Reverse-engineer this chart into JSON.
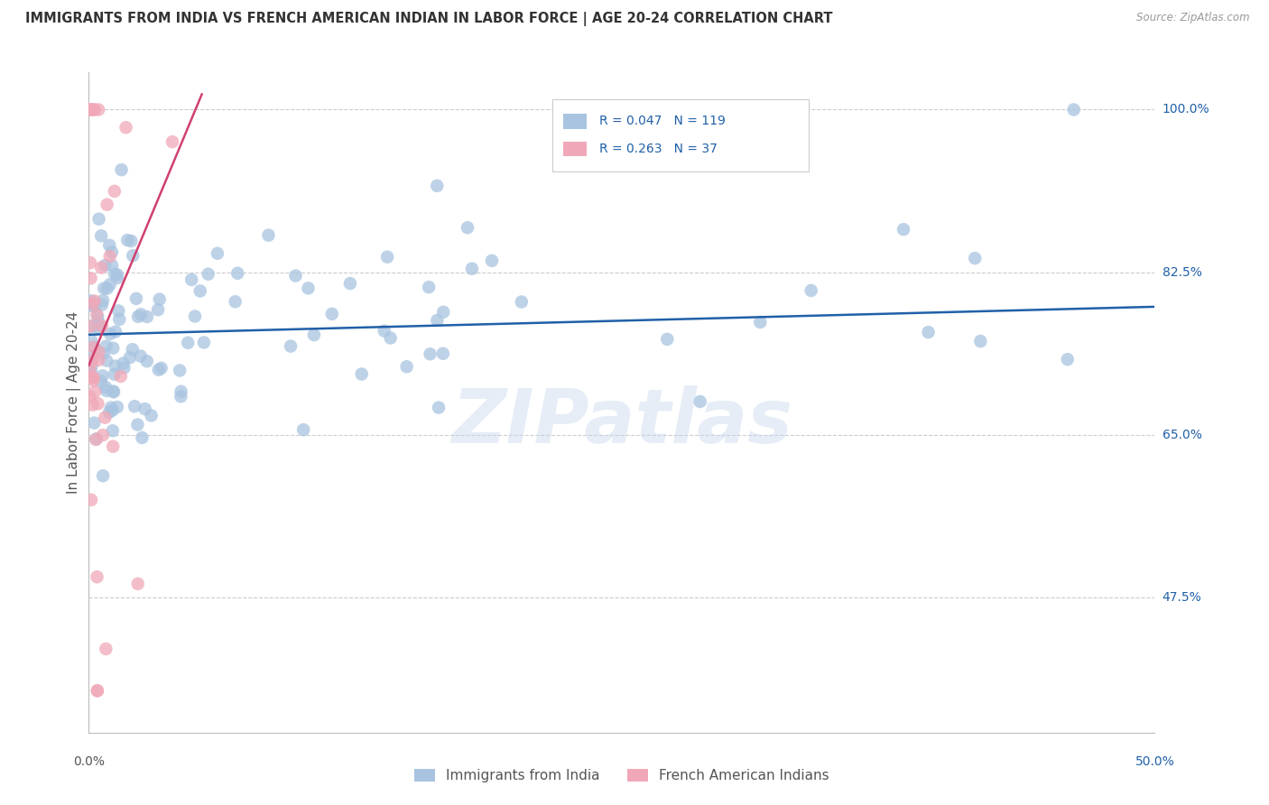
{
  "title": "IMMIGRANTS FROM INDIA VS FRENCH AMERICAN INDIAN IN LABOR FORCE | AGE 20-24 CORRELATION CHART",
  "source": "Source: ZipAtlas.com",
  "ylabel": "In Labor Force | Age 20-24",
  "y_tick_labels": [
    "100.0%",
    "82.5%",
    "65.0%",
    "47.5%"
  ],
  "y_tick_values": [
    1.0,
    0.825,
    0.65,
    0.475
  ],
  "xlim": [
    0.0,
    0.5
  ],
  "ylim": [
    0.33,
    1.04
  ],
  "blue_R": 0.047,
  "blue_N": 119,
  "pink_R": 0.263,
  "pink_N": 37,
  "blue_color": "#a8c4e0",
  "blue_line_color": "#2060a8",
  "pink_color": "#f0a8b8",
  "pink_line_color": "#d04070",
  "legend_label_blue": "Immigrants from India",
  "legend_label_pink": "French American Indians",
  "watermark": "ZIPatlas",
  "blue_slope": 0.06,
  "blue_intercept": 0.758,
  "pink_slope": 5.5,
  "pink_intercept": 0.725
}
